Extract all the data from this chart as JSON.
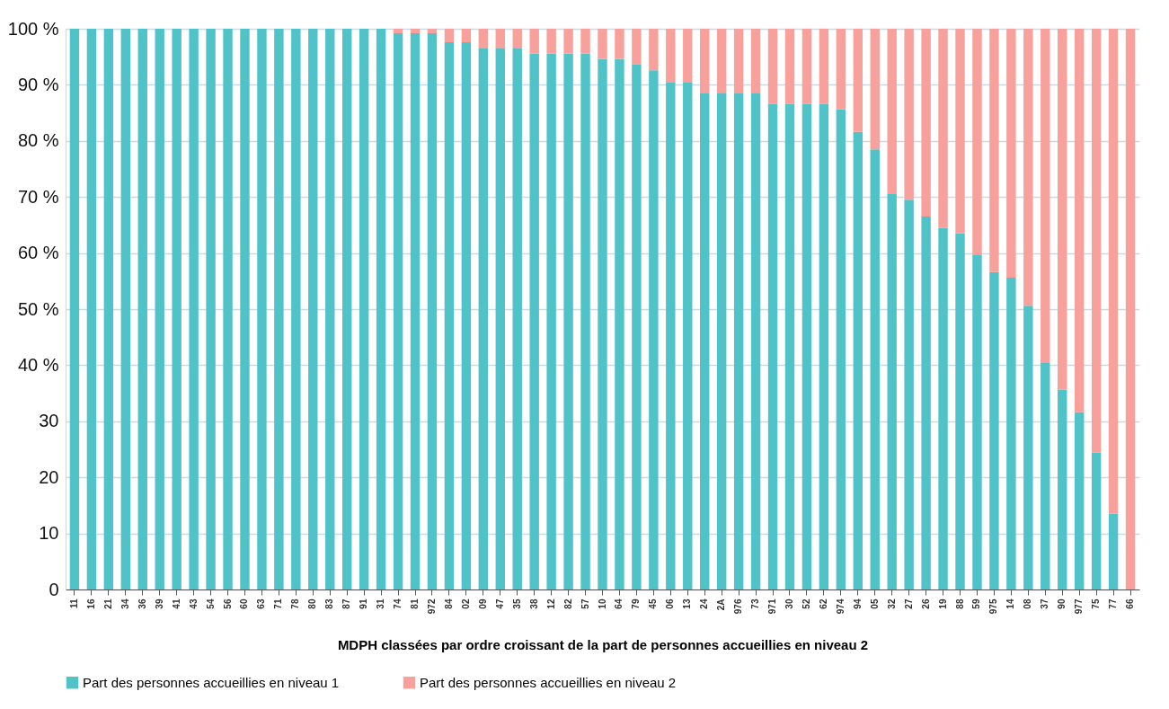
{
  "chart_data": {
    "type": "bar",
    "stacked": true,
    "xlabel": "MDPH classées par ordre croissant de la part de personnes accueillies en niveau 2",
    "categories": [
      "11",
      "16",
      "21",
      "34",
      "36",
      "39",
      "41",
      "43",
      "54",
      "56",
      "60",
      "63",
      "71",
      "78",
      "80",
      "83",
      "87",
      "91",
      "31",
      "74",
      "81",
      "972",
      "84",
      "02",
      "09",
      "47",
      "35",
      "38",
      "12",
      "82",
      "57",
      "10",
      "64",
      "79",
      "45",
      "06",
      "13",
      "24",
      "2A",
      "976",
      "73",
      "971",
      "30",
      "52",
      "62",
      "974",
      "94",
      "05",
      "32",
      "27",
      "26",
      "19",
      "88",
      "59",
      "975",
      "14",
      "08",
      "37",
      "90",
      "977",
      "75",
      "77",
      "66"
    ],
    "series": [
      {
        "name": "Part des personnes accueillies en niveau 1",
        "color": "#4fc3c8",
        "values": [
          100,
          100,
          100,
          100,
          100,
          100,
          100,
          100,
          100,
          100,
          100,
          100,
          100,
          100,
          100,
          100,
          100,
          100,
          100,
          99.2,
          99.2,
          99.2,
          97.6,
          97.6,
          96.6,
          96.6,
          96.6,
          95.6,
          95.6,
          95.6,
          95.6,
          94.6,
          94.6,
          93.6,
          92.6,
          90.5,
          90.5,
          88.6,
          88.6,
          88.6,
          88.6,
          86.6,
          86.6,
          86.6,
          86.6,
          85.6,
          81.6,
          78.5,
          70.5,
          69.5,
          66.5,
          64.5,
          63.5,
          59.6,
          56.6,
          55.6,
          50.6,
          40.5,
          35.6,
          31.6,
          24.4,
          13.5,
          0
        ]
      },
      {
        "name": "Part des personnes accueillies en niveau 2",
        "color": "#f7a09c",
        "values": [
          0,
          0,
          0,
          0,
          0,
          0,
          0,
          0,
          0,
          0,
          0,
          0,
          0,
          0,
          0,
          0,
          0,
          0,
          0,
          0.8,
          0.8,
          0.8,
          2.4,
          2.4,
          3.4,
          3.4,
          3.4,
          4.4,
          4.4,
          4.4,
          4.4,
          5.4,
          5.4,
          6.4,
          7.4,
          9.5,
          9.5,
          11.4,
          11.4,
          11.4,
          11.4,
          13.4,
          13.4,
          13.4,
          13.4,
          14.4,
          18.4,
          21.5,
          29.5,
          30.5,
          33.5,
          35.5,
          36.5,
          40.4,
          43.4,
          44.4,
          49.4,
          59.5,
          64.4,
          68.4,
          75.6,
          86.5,
          100
        ]
      }
    ],
    "ylim": [
      0,
      100
    ],
    "yticks": [
      {
        "value": 0,
        "label": "0"
      },
      {
        "value": 10,
        "label": "10"
      },
      {
        "value": 20,
        "label": "20"
      },
      {
        "value": 30,
        "label": "30"
      },
      {
        "value": 40,
        "label": "40 %"
      },
      {
        "value": 50,
        "label": "50 %"
      },
      {
        "value": 60,
        "label": "60 %"
      },
      {
        "value": 70,
        "label": "70 %"
      },
      {
        "value": 80,
        "label": "80 %"
      },
      {
        "value": 90,
        "label": "90 %"
      },
      {
        "value": 100,
        "label": "100 %"
      }
    ],
    "grid": "y",
    "legend": "bottom"
  }
}
